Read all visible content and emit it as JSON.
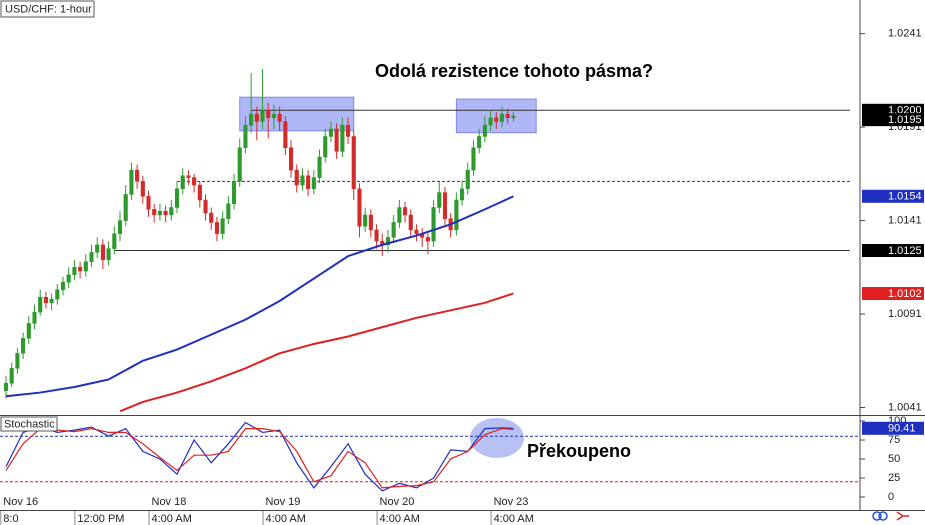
{
  "chart_data": [
    {
      "type": "candlestick",
      "title": "USD/CHF: 1-hour",
      "annotation": "Odolá rezistence tohoto pásma?",
      "xlim": [
        -1.05,
        149.8
      ],
      "ylim": [
        1.0037,
        1.0259
      ],
      "yticks": [
        1.0241,
        1.0191,
        1.0141,
        1.0091,
        1.0041
      ],
      "up_color": "#2e9a2e",
      "down_color": "#d42a2a",
      "candles": [
        [
          1.005,
          1.0058,
          1.0046,
          1.0054
        ],
        [
          1.0054,
          1.0065,
          1.0052,
          1.0062
        ],
        [
          1.0062,
          1.0073,
          1.0059,
          1.007
        ],
        [
          1.007,
          1.0081,
          1.0067,
          1.0078
        ],
        [
          1.0078,
          1.009,
          1.0075,
          1.0086
        ],
        [
          1.0086,
          1.0096,
          1.0083,
          1.0092
        ],
        [
          1.0092,
          1.0104,
          1.009,
          1.01
        ],
        [
          1.01,
          1.0103,
          1.0094,
          1.0097
        ],
        [
          1.0097,
          1.0102,
          1.0093,
          1.0099
        ],
        [
          1.0099,
          1.0107,
          1.0096,
          1.0104
        ],
        [
          1.0104,
          1.0111,
          1.0101,
          1.0108
        ],
        [
          1.0108,
          1.0116,
          1.0105,
          1.0112
        ],
        [
          1.0112,
          1.012,
          1.0109,
          1.0116
        ],
        [
          1.0116,
          1.0119,
          1.011,
          1.0114
        ],
        [
          1.0114,
          1.0123,
          1.0111,
          1.0119
        ],
        [
          1.0119,
          1.0128,
          1.0116,
          1.0124
        ],
        [
          1.0124,
          1.0132,
          1.0121,
          1.0128
        ],
        [
          1.0128,
          1.0131,
          1.0115,
          1.012
        ],
        [
          1.012,
          1.013,
          1.0117,
          1.0126
        ],
        [
          1.0126,
          1.0138,
          1.0123,
          1.0134
        ],
        [
          1.0134,
          1.0146,
          1.013,
          1.0141
        ],
        [
          1.0141,
          1.016,
          1.0138,
          1.0155
        ],
        [
          1.0155,
          1.0172,
          1.0152,
          1.0168
        ],
        [
          1.0168,
          1.0171,
          1.0158,
          1.0162
        ],
        [
          1.0162,
          1.0165,
          1.015,
          1.0154
        ],
        [
          1.0154,
          1.0157,
          1.0143,
          1.0147
        ],
        [
          1.0147,
          1.015,
          1.014,
          1.0144
        ],
        [
          1.0144,
          1.015,
          1.0141,
          1.0146
        ],
        [
          1.0146,
          1.0149,
          1.014,
          1.0144
        ],
        [
          1.0144,
          1.0152,
          1.0141,
          1.0148
        ],
        [
          1.0148,
          1.0162,
          1.0145,
          1.0158
        ],
        [
          1.0158,
          1.0169,
          1.0155,
          1.0165
        ],
        [
          1.0165,
          1.0168,
          1.016,
          1.0164
        ],
        [
          1.0164,
          1.0166,
          1.0156,
          1.016
        ],
        [
          1.016,
          1.0162,
          1.0148,
          1.0152
        ],
        [
          1.0152,
          1.0155,
          1.0141,
          1.0145
        ],
        [
          1.0145,
          1.0148,
          1.0136,
          1.014
        ],
        [
          1.014,
          1.0143,
          1.013,
          1.0134
        ],
        [
          1.0134,
          1.0146,
          1.0131,
          1.0142
        ],
        [
          1.0142,
          1.0154,
          1.0139,
          1.015
        ],
        [
          1.015,
          1.0166,
          1.0147,
          1.0162
        ],
        [
          1.0162,
          1.0185,
          1.0159,
          1.018
        ],
        [
          1.018,
          1.0197,
          1.0177,
          1.0192
        ],
        [
          1.0192,
          1.022,
          1.0188,
          1.0198
        ],
        [
          1.0198,
          1.0202,
          1.0184,
          1.0194
        ],
        [
          1.0194,
          1.0222,
          1.019,
          1.02
        ],
        [
          1.02,
          1.0204,
          1.0185,
          1.0196
        ],
        [
          1.0196,
          1.0203,
          1.019,
          1.0198
        ],
        [
          1.0198,
          1.0202,
          1.0189,
          1.0194
        ],
        [
          1.0194,
          1.0197,
          1.0176,
          1.018
        ],
        [
          1.018,
          1.0184,
          1.0164,
          1.0168
        ],
        [
          1.0168,
          1.0171,
          1.0156,
          1.016
        ],
        [
          1.016,
          1.0169,
          1.0157,
          1.0165
        ],
        [
          1.0165,
          1.0168,
          1.0154,
          1.0158
        ],
        [
          1.0158,
          1.0168,
          1.0155,
          1.0164
        ],
        [
          1.0164,
          1.0179,
          1.0161,
          1.0175
        ],
        [
          1.0175,
          1.019,
          1.0172,
          1.0186
        ],
        [
          1.0186,
          1.0194,
          1.0183,
          1.019
        ],
        [
          1.019,
          1.0193,
          1.0174,
          1.0178
        ],
        [
          1.0178,
          1.0196,
          1.0175,
          1.0192
        ],
        [
          1.0192,
          1.0196,
          1.0182,
          1.0186
        ],
        [
          1.0186,
          1.0189,
          1.0152,
          1.0158
        ],
        [
          1.0158,
          1.0161,
          1.0132,
          1.0138
        ],
        [
          1.0138,
          1.0148,
          1.0135,
          1.0144
        ],
        [
          1.0144,
          1.0147,
          1.0132,
          1.0136
        ],
        [
          1.0136,
          1.0139,
          1.0126,
          1.013
        ],
        [
          1.013,
          1.0134,
          1.0122,
          1.0128
        ],
        [
          1.0128,
          1.0136,
          1.0124,
          1.0132
        ],
        [
          1.0132,
          1.0144,
          1.0129,
          1.014
        ],
        [
          1.014,
          1.0152,
          1.0137,
          1.0148
        ],
        [
          1.0148,
          1.0151,
          1.014,
          1.0144
        ],
        [
          1.0144,
          1.0147,
          1.0132,
          1.0136
        ],
        [
          1.0136,
          1.0139,
          1.013,
          1.0134
        ],
        [
          1.0134,
          1.0137,
          1.0127,
          1.0132
        ],
        [
          1.0132,
          1.0135,
          1.0123,
          1.013
        ],
        [
          1.013,
          1.0152,
          1.0127,
          1.0148
        ],
        [
          1.0148,
          1.0162,
          1.0145,
          1.0156
        ],
        [
          1.0156,
          1.0159,
          1.0138,
          1.0142
        ],
        [
          1.0142,
          1.0145,
          1.0132,
          1.0136
        ],
        [
          1.0136,
          1.0156,
          1.0133,
          1.0152
        ],
        [
          1.0152,
          1.0162,
          1.0149,
          1.0158
        ],
        [
          1.0158,
          1.0172,
          1.0155,
          1.0168
        ],
        [
          1.0168,
          1.0184,
          1.0165,
          1.018
        ],
        [
          1.018,
          1.019,
          1.0177,
          1.0186
        ],
        [
          1.0186,
          1.0197,
          1.0183,
          1.0192
        ],
        [
          1.0192,
          1.02,
          1.0189,
          1.0196
        ],
        [
          1.0196,
          1.0199,
          1.019,
          1.0194
        ],
        [
          1.0194,
          1.0202,
          1.0191,
          1.0198
        ],
        [
          1.0198,
          1.0201,
          1.0193,
          1.0196
        ],
        [
          1.0196,
          1.0199,
          1.0194,
          1.0197
        ]
      ],
      "series": [
        {
          "color": "#1f2fbf",
          "x": [
            0,
            6,
            12,
            18,
            24,
            30,
            36,
            42,
            48,
            54,
            60,
            66,
            72,
            78,
            84,
            89
          ],
          "values": [
            1.0047,
            1.0049,
            1.0052,
            1.0056,
            1.0066,
            1.0072,
            1.008,
            1.0088,
            1.0098,
            1.011,
            1.0122,
            1.0128,
            1.0133,
            1.0139,
            1.0147,
            1.0154
          ]
        },
        {
          "color": "#e02020",
          "x": [
            20,
            24,
            30,
            36,
            42,
            48,
            54,
            60,
            66,
            72,
            78,
            84,
            89
          ],
          "values": [
            1.0039,
            1.0044,
            1.0049,
            1.0055,
            1.0062,
            1.007,
            1.0075,
            1.0079,
            1.0084,
            1.0089,
            1.0093,
            1.0097,
            1.0102
          ]
        }
      ],
      "levels": [
        {
          "value": 1.02,
          "start": 43,
          "style": "solid"
        },
        {
          "value": 1.0162,
          "start": 30,
          "style": "dashed"
        },
        {
          "value": 1.0125,
          "start": 19,
          "style": "solid"
        }
      ],
      "zones": [
        {
          "x": [
            41,
            61
          ],
          "y": [
            1.0189,
            1.0207
          ]
        },
        {
          "x": [
            79,
            93
          ],
          "y": [
            1.0188,
            1.0206
          ]
        }
      ],
      "price_labels": [
        {
          "value": 1.02,
          "label": "1.0200",
          "color": "#000000"
        },
        {
          "value": 1.0195,
          "label": "1.0195",
          "color": "#000000"
        },
        {
          "value": 1.0154,
          "label": "1.0154",
          "color": "#1f2fbf"
        },
        {
          "value": 1.0125,
          "label": "1.0125",
          "color": "#000000"
        },
        {
          "value": 1.0102,
          "label": "1.0102",
          "color": "#e02020"
        }
      ]
    },
    {
      "type": "line",
      "title": "Stochastic",
      "annotation": "Překoupeno",
      "xlim": [
        -1.05,
        149.8
      ],
      "ylim": [
        -7.9,
        106.6
      ],
      "yticks": [
        100,
        75,
        50,
        25,
        0
      ],
      "levels": [
        {
          "value": 80,
          "color": "#2233aa"
        },
        {
          "value": 20,
          "color": "#cc2222"
        }
      ],
      "series": [
        {
          "color": "#1f2fbf",
          "x": [
            0,
            3,
            6,
            9,
            12,
            15,
            18,
            21,
            24,
            27,
            30,
            33,
            36,
            39,
            42,
            45,
            48,
            51,
            54,
            57,
            60,
            63,
            66,
            69,
            72,
            75,
            78,
            81,
            84,
            87,
            89
          ],
          "values": [
            40,
            85,
            92,
            85,
            88,
            92,
            80,
            90,
            60,
            50,
            30,
            75,
            45,
            70,
            98,
            85,
            88,
            45,
            12,
            40,
            70,
            30,
            8,
            18,
            12,
            25,
            62,
            60,
            90,
            91,
            90.41
          ]
        },
        {
          "color": "#e02020",
          "x": [
            0,
            3,
            6,
            9,
            12,
            15,
            18,
            21,
            24,
            27,
            30,
            33,
            36,
            39,
            42,
            45,
            48,
            51,
            54,
            57,
            60,
            63,
            66,
            69,
            72,
            75,
            78,
            81,
            84,
            87,
            89
          ],
          "values": [
            35,
            70,
            90,
            88,
            86,
            90,
            85,
            85,
            70,
            52,
            35,
            55,
            55,
            60,
            90,
            90,
            86,
            60,
            20,
            28,
            60,
            45,
            12,
            14,
            15,
            20,
            50,
            60,
            82,
            90,
            89
          ]
        }
      ],
      "price_labels": [
        {
          "value": 90.41,
          "color": "#1f2fbf"
        }
      ],
      "date_ticks": [
        {
          "value": -1,
          "label": "Nov 16"
        },
        {
          "value": 25,
          "label": "Nov 18"
        },
        {
          "value": 45,
          "label": "Nov 19"
        },
        {
          "value": 65,
          "label": "Nov 20"
        },
        {
          "value": 85,
          "label": "Nov 23"
        }
      ],
      "xticks": [
        {
          "value": -1,
          "label": "8:0"
        },
        {
          "value": 12,
          "label": "12:00 PM"
        },
        {
          "value": 25,
          "label": "4:00 AM"
        },
        {
          "value": 45,
          "label": "4:00 AM"
        },
        {
          "value": 65,
          "label": "4:00 AM"
        },
        {
          "value": 85,
          "label": "4:00 AM"
        }
      ]
    }
  ]
}
